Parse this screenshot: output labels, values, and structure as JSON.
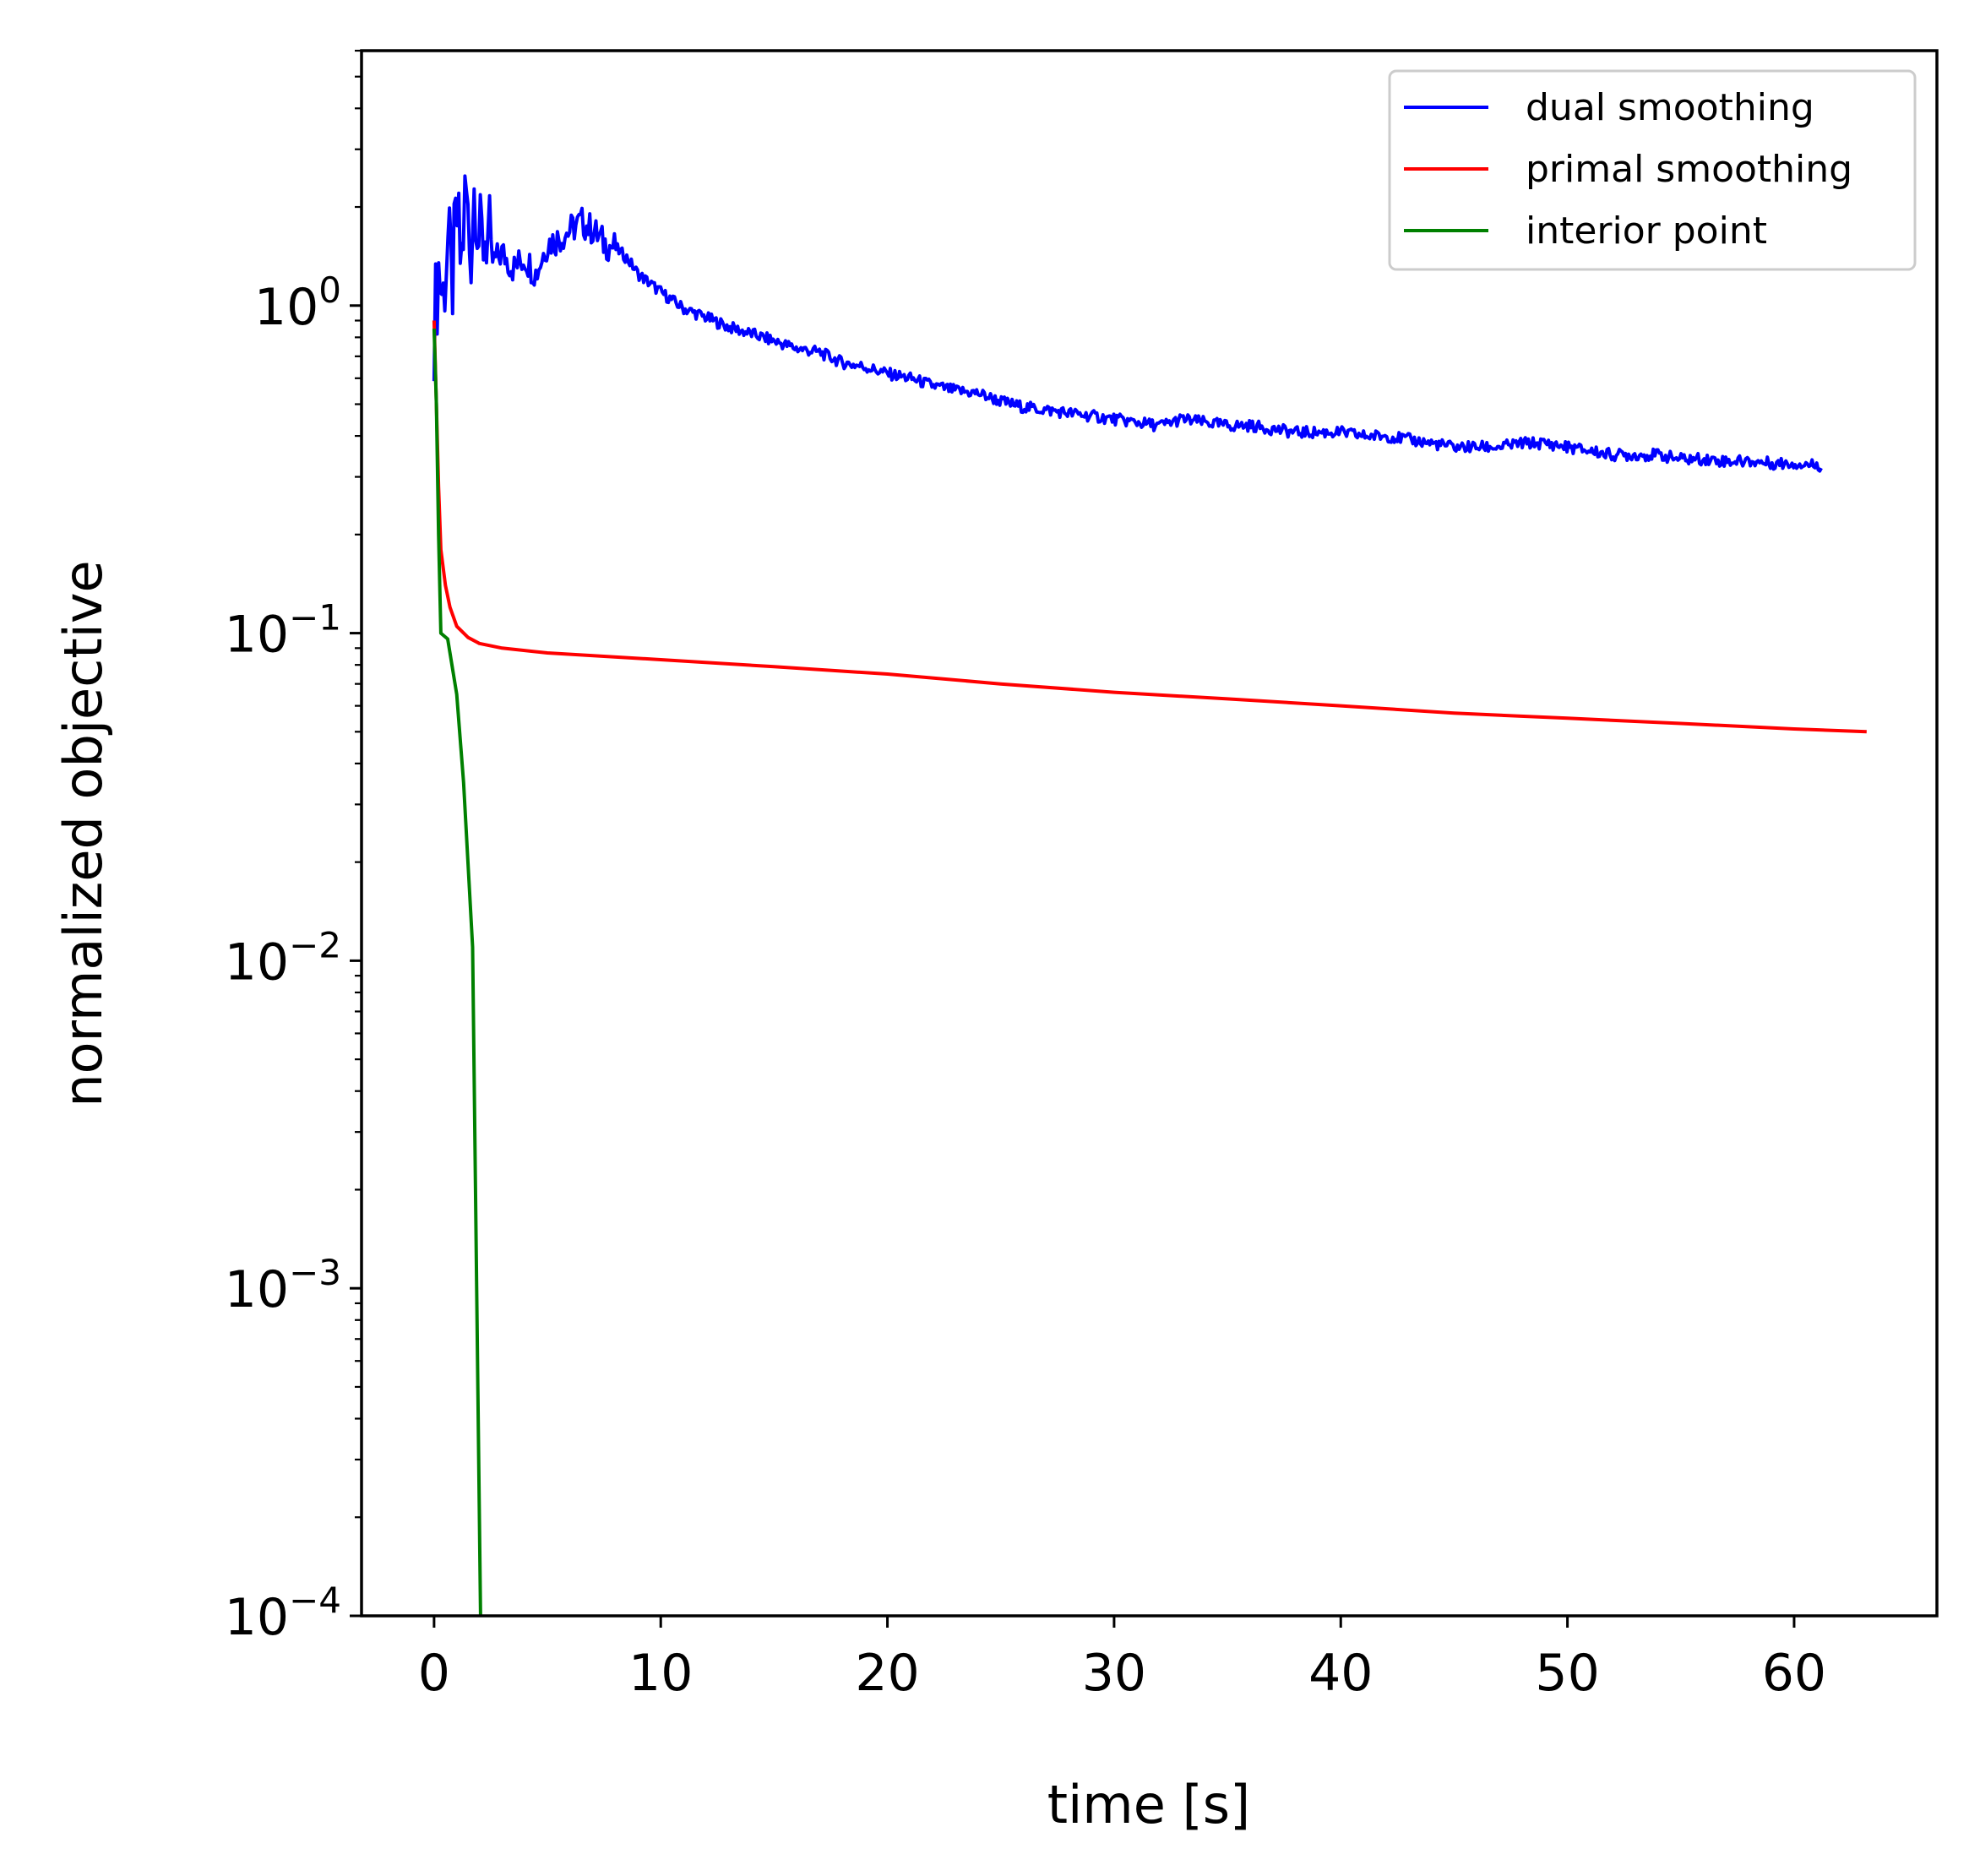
{
  "chart_data": {
    "type": "line",
    "xlabel": "time [s]",
    "ylabel": "normalized objective",
    "xlim": [
      -3.2,
      66.3
    ],
    "ylim": [
      0.0001,
      6.0
    ],
    "yscale": "log",
    "grid": false,
    "legend_position": "top-right",
    "x_ticks": [
      {
        "value": 0,
        "label": "0"
      },
      {
        "value": 10,
        "label": "10"
      },
      {
        "value": 20,
        "label": "20"
      },
      {
        "value": 30,
        "label": "30"
      },
      {
        "value": 40,
        "label": "40"
      },
      {
        "value": 50,
        "label": "50"
      },
      {
        "value": 60,
        "label": "60"
      }
    ],
    "y_ticks": [
      {
        "value": 1,
        "base": "10",
        "exp": "0"
      },
      {
        "value": 0.1,
        "base": "10",
        "exp": "−1"
      },
      {
        "value": 0.01,
        "base": "10",
        "exp": "−2"
      },
      {
        "value": 0.001,
        "base": "10",
        "exp": "−3"
      },
      {
        "value": 0.0001,
        "base": "10",
        "exp": "−4"
      }
    ],
    "series": [
      {
        "name": "dual smoothing",
        "color": "#0000ff",
        "x": [
          0.0,
          0.2,
          0.4,
          0.6,
          0.8,
          1.0,
          1.2,
          1.4,
          1.6,
          1.8,
          2.0,
          2.3,
          2.6,
          3.0,
          3.5,
          4.0,
          4.5,
          5.0,
          5.5,
          6.0,
          6.5,
          7.0,
          7.5,
          8.0,
          8.5,
          9.0,
          10.0,
          11.0,
          12.0,
          13.0,
          14.0,
          15.0,
          16.0,
          17.0,
          18.0,
          19.0,
          20.0,
          21.0,
          22.0,
          23.0,
          24.0,
          25.0,
          26.0,
          27.0,
          28.0,
          29.0,
          30.0,
          31.0,
          32.0,
          33.0,
          34.0,
          35.0,
          36.0,
          37.0,
          38.0,
          39.0,
          40.0,
          41.0,
          42.0,
          43.0,
          44.0,
          45.0,
          46.0,
          47.0,
          48.0,
          49.0,
          50.0,
          51.0,
          52.0,
          53.0,
          54.0,
          55.0,
          56.0,
          57.0,
          58.0,
          59.0,
          60.0,
          61.2
        ],
        "y": [
          0.85,
          1.3,
          1.05,
          1.6,
          1.15,
          1.9,
          1.3,
          2.3,
          1.4,
          2.5,
          1.5,
          1.7,
          1.35,
          1.45,
          1.3,
          1.4,
          1.25,
          1.55,
          1.6,
          1.7,
          1.8,
          1.7,
          1.55,
          1.5,
          1.4,
          1.25,
          1.1,
          0.98,
          0.92,
          0.86,
          0.82,
          0.78,
          0.74,
          0.72,
          0.67,
          0.65,
          0.62,
          0.6,
          0.57,
          0.55,
          0.54,
          0.51,
          0.49,
          0.48,
          0.47,
          0.46,
          0.45,
          0.44,
          0.43,
          0.45,
          0.44,
          0.43,
          0.43,
          0.42,
          0.41,
          0.41,
          0.41,
          0.4,
          0.4,
          0.39,
          0.38,
          0.37,
          0.37,
          0.37,
          0.38,
          0.38,
          0.37,
          0.36,
          0.35,
          0.35,
          0.35,
          0.34,
          0.34,
          0.335,
          0.335,
          0.33,
          0.33,
          0.325
        ]
      },
      {
        "name": "primal smoothing",
        "color": "#ff0000",
        "x": [
          0.0,
          0.1,
          0.2,
          0.3,
          0.5,
          0.7,
          1.0,
          1.5,
          2.0,
          3.0,
          5.0,
          10.0,
          15.0,
          20.0,
          25.0,
          30.0,
          35.0,
          40.0,
          45.0,
          50.0,
          55.0,
          60.0,
          63.2
        ],
        "y": [
          0.9,
          0.5,
          0.28,
          0.18,
          0.14,
          0.12,
          0.105,
          0.097,
          0.093,
          0.09,
          0.087,
          0.083,
          0.079,
          0.075,
          0.07,
          0.066,
          0.063,
          0.06,
          0.057,
          0.055,
          0.053,
          0.051,
          0.05
        ]
      },
      {
        "name": "interior point",
        "color": "#008000",
        "x": [
          0.0,
          0.1,
          0.2,
          0.3,
          0.6,
          1.0,
          1.3,
          1.7,
          2.05
        ],
        "y": [
          0.85,
          0.5,
          0.2,
          0.1,
          0.096,
          0.065,
          0.035,
          0.011,
          0.0001
        ]
      }
    ]
  }
}
